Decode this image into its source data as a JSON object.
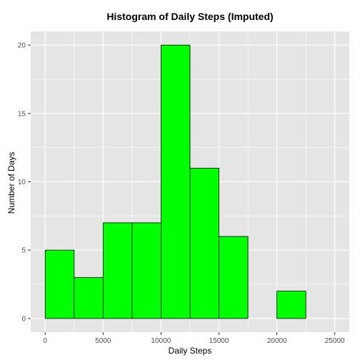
{
  "chart_data": {
    "type": "bar",
    "title": "Histogram of Daily Steps (Imputed)",
    "xlabel": "Daily Steps",
    "ylabel": "Number of Days",
    "bin_edges": [
      0,
      2500,
      5000,
      7500,
      10000,
      12500,
      15000,
      17500,
      20000,
      22500,
      25000
    ],
    "values": [
      5,
      3,
      7,
      7,
      20,
      11,
      6,
      0,
      2,
      0
    ],
    "xlim": [
      -1250,
      26250
    ],
    "ylim": [
      -1,
      21
    ],
    "x_ticks": [
      0,
      5000,
      10000,
      15000,
      20000,
      25000
    ],
    "x_tick_labels": [
      "0",
      "5000",
      "10000",
      "15000",
      "20000",
      "25000"
    ],
    "y_ticks": [
      0,
      5,
      10,
      15,
      20
    ],
    "y_tick_labels": [
      "0",
      "5",
      "10",
      "15",
      "20"
    ],
    "grid": true,
    "panel_background": "#e5e5e5",
    "grid_color": "#ffffff",
    "bar_fill": "#00ff00",
    "bar_outline": "#000000"
  }
}
